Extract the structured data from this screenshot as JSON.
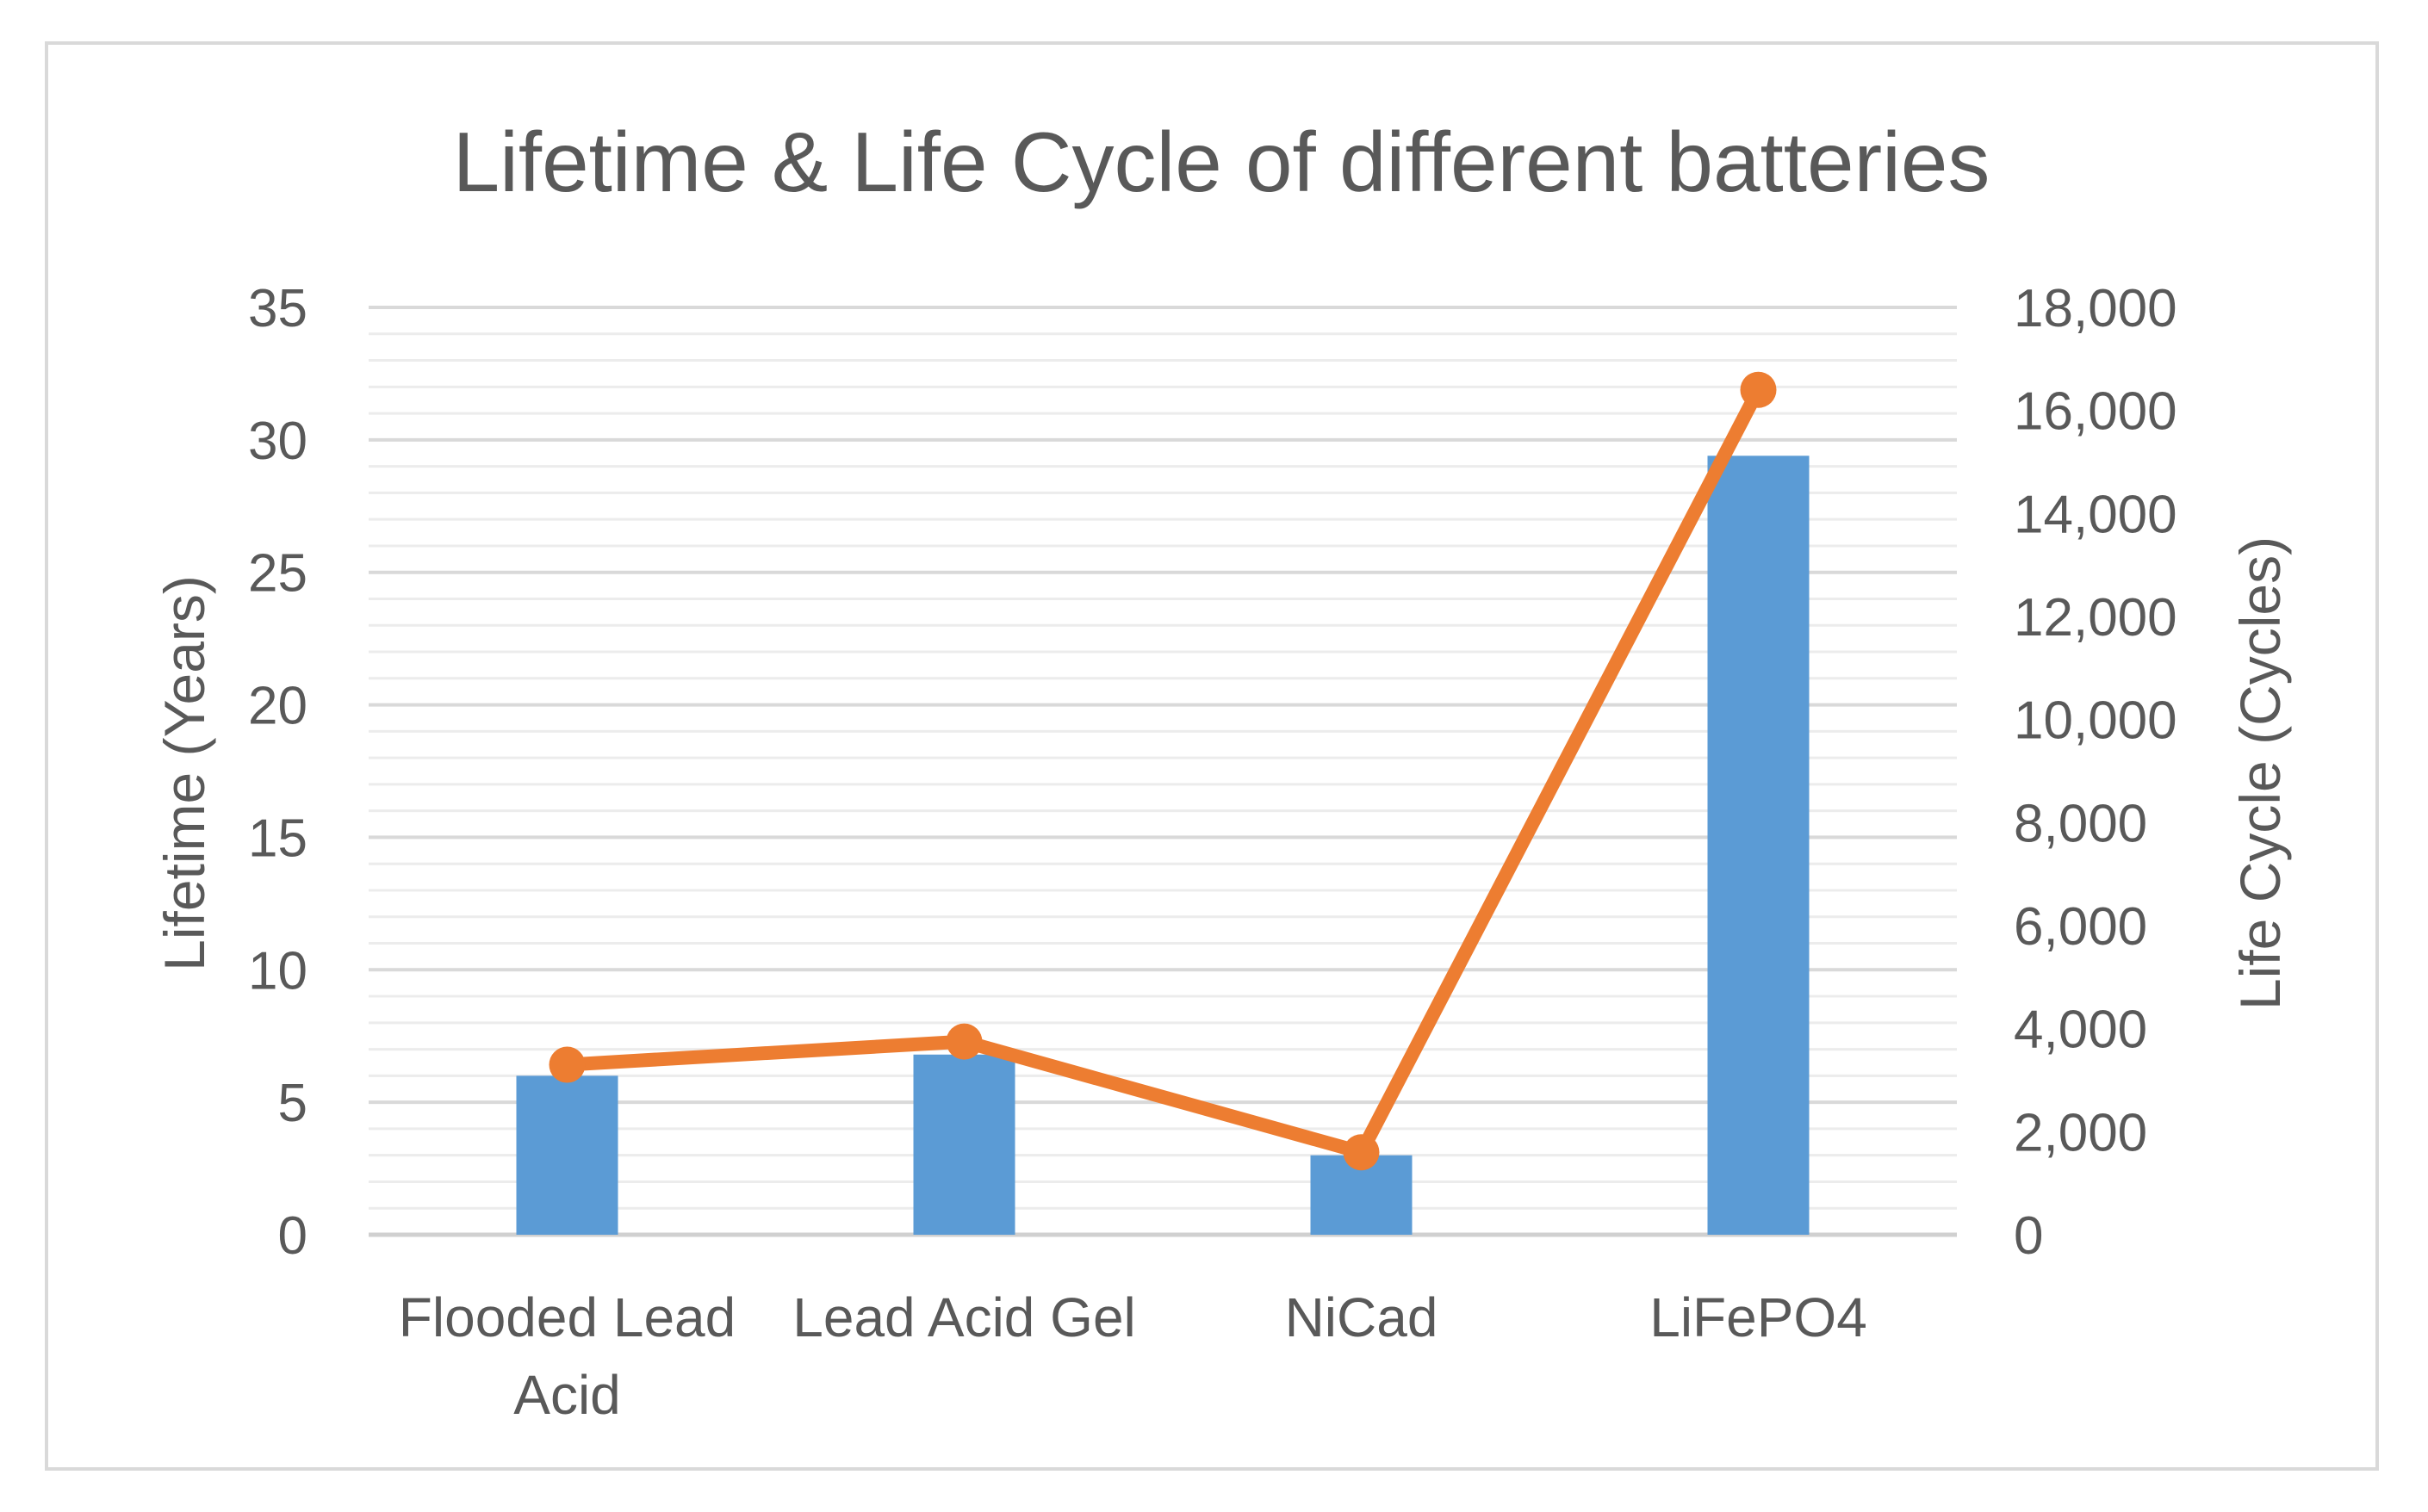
{
  "chart_data": {
    "type": "bar",
    "title": "Lifetime & Life Cycle of different batteries",
    "categories": [
      "Flooded Lead Acid",
      "Lead Acid Gel",
      "NiCad",
      "LiFePO4"
    ],
    "category_lines": [
      [
        "Flooded Lead",
        "Acid"
      ],
      [
        "Lead Acid Gel"
      ],
      [
        "NiCad"
      ],
      [
        "LiFePO4"
      ]
    ],
    "ylabel": "Lifetime (Years)",
    "y2label": "Life Cycle (Cycles)",
    "ylim": [
      0,
      35
    ],
    "y2lim": [
      0,
      18000
    ],
    "yticks": [
      0,
      5,
      10,
      15,
      20,
      25,
      30,
      35
    ],
    "y2ticks": [
      0,
      2000,
      4000,
      6000,
      8000,
      10000,
      12000,
      14000,
      16000,
      18000
    ],
    "y2tick_labels": [
      "0",
      "2,000",
      "4,000",
      "6,000",
      "8,000",
      "10,000",
      "12,000",
      "14,000",
      "16,000",
      "18,000"
    ],
    "series": [
      {
        "name": "Lifetime (Years)",
        "type": "bar",
        "axis": "left",
        "values": [
          6,
          6.8,
          3,
          29.4
        ],
        "color": "#5b9bd5"
      },
      {
        "name": "Life Cycle (Cycles)",
        "type": "line",
        "axis": "right",
        "values": [
          3300,
          3750,
          1600,
          16400
        ],
        "color": "#ed7d31"
      }
    ],
    "grid": true,
    "legend": "none"
  }
}
